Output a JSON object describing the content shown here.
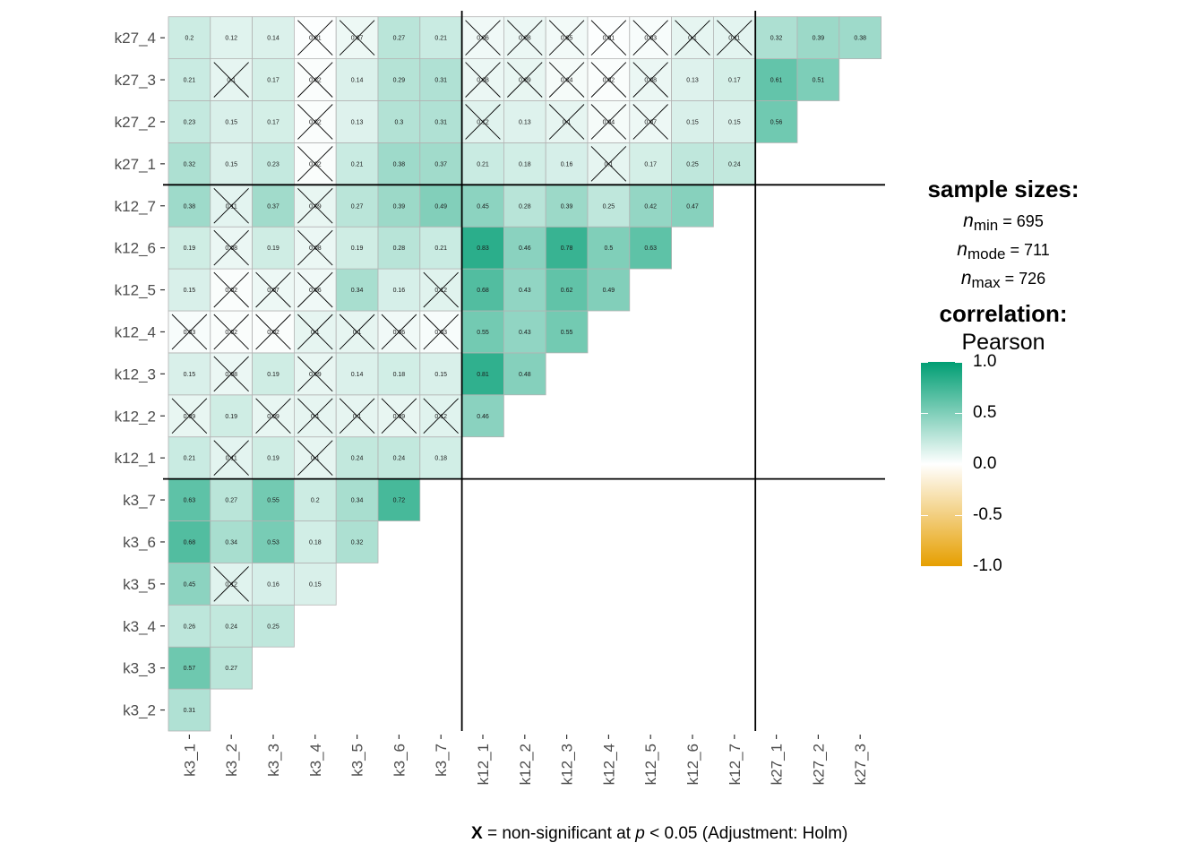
{
  "chart_data": {
    "type": "heatmap",
    "variables": [
      "k3_1",
      "k3_2",
      "k3_3",
      "k3_4",
      "k3_5",
      "k3_6",
      "k3_7",
      "k12_1",
      "k12_2",
      "k12_3",
      "k12_4",
      "k12_5",
      "k12_6",
      "k12_7",
      "k27_1",
      "k27_2",
      "k27_3",
      "k27_4"
    ],
    "cells": [
      {
        "x": "k3_1",
        "y": "k3_2",
        "value": "0.31",
        "sig": true
      },
      {
        "x": "k3_1",
        "y": "k3_3",
        "value": "0.57",
        "sig": true
      },
      {
        "x": "k3_2",
        "y": "k3_3",
        "value": "0.27",
        "sig": true
      },
      {
        "x": "k3_1",
        "y": "k3_4",
        "value": "0.26",
        "sig": true
      },
      {
        "x": "k3_2",
        "y": "k3_4",
        "value": "0.24",
        "sig": true
      },
      {
        "x": "k3_3",
        "y": "k3_4",
        "value": "0.25",
        "sig": true
      },
      {
        "x": "k3_1",
        "y": "k3_5",
        "value": "0.45",
        "sig": true
      },
      {
        "x": "k3_2",
        "y": "k3_5",
        "value": "0.12",
        "sig": false
      },
      {
        "x": "k3_3",
        "y": "k3_5",
        "value": "0.16",
        "sig": true
      },
      {
        "x": "k3_4",
        "y": "k3_5",
        "value": "0.15",
        "sig": true
      },
      {
        "x": "k3_1",
        "y": "k3_6",
        "value": "0.68",
        "sig": true
      },
      {
        "x": "k3_2",
        "y": "k3_6",
        "value": "0.34",
        "sig": true
      },
      {
        "x": "k3_3",
        "y": "k3_6",
        "value": "0.53",
        "sig": true
      },
      {
        "x": "k3_4",
        "y": "k3_6",
        "value": "0.18",
        "sig": true
      },
      {
        "x": "k3_5",
        "y": "k3_6",
        "value": "0.32",
        "sig": true
      },
      {
        "x": "k3_1",
        "y": "k3_7",
        "value": "0.63",
        "sig": true
      },
      {
        "x": "k3_2",
        "y": "k3_7",
        "value": "0.27",
        "sig": true
      },
      {
        "x": "k3_3",
        "y": "k3_7",
        "value": "0.55",
        "sig": true
      },
      {
        "x": "k3_4",
        "y": "k3_7",
        "value": "0.2",
        "sig": true
      },
      {
        "x": "k3_5",
        "y": "k3_7",
        "value": "0.34",
        "sig": true
      },
      {
        "x": "k3_6",
        "y": "k3_7",
        "value": "0.72",
        "sig": true
      },
      {
        "x": "k3_1",
        "y": "k12_1",
        "value": "0.21",
        "sig": true
      },
      {
        "x": "k3_2",
        "y": "k12_1",
        "value": "0.11",
        "sig": false
      },
      {
        "x": "k3_3",
        "y": "k12_1",
        "value": "0.19",
        "sig": true
      },
      {
        "x": "k3_4",
        "y": "k12_1",
        "value": "0.1",
        "sig": false
      },
      {
        "x": "k3_5",
        "y": "k12_1",
        "value": "0.24",
        "sig": true
      },
      {
        "x": "k3_6",
        "y": "k12_1",
        "value": "0.24",
        "sig": true
      },
      {
        "x": "k3_7",
        "y": "k12_1",
        "value": "0.18",
        "sig": true
      },
      {
        "x": "k3_1",
        "y": "k12_2",
        "value": "0.09",
        "sig": false
      },
      {
        "x": "k3_2",
        "y": "k12_2",
        "value": "0.19",
        "sig": true
      },
      {
        "x": "k3_3",
        "y": "k12_2",
        "value": "0.09",
        "sig": false
      },
      {
        "x": "k3_4",
        "y": "k12_2",
        "value": "0.1",
        "sig": false
      },
      {
        "x": "k3_5",
        "y": "k12_2",
        "value": "0.1",
        "sig": false
      },
      {
        "x": "k3_6",
        "y": "k12_2",
        "value": "0.09",
        "sig": false
      },
      {
        "x": "k3_7",
        "y": "k12_2",
        "value": "0.12",
        "sig": false
      },
      {
        "x": "k12_1",
        "y": "k12_2",
        "value": "0.46",
        "sig": true
      },
      {
        "x": "k3_1",
        "y": "k12_3",
        "value": "0.15",
        "sig": true
      },
      {
        "x": "k3_2",
        "y": "k12_3",
        "value": "0.08",
        "sig": false
      },
      {
        "x": "k3_3",
        "y": "k12_3",
        "value": "0.19",
        "sig": true
      },
      {
        "x": "k3_4",
        "y": "k12_3",
        "value": "0.09",
        "sig": false
      },
      {
        "x": "k3_5",
        "y": "k12_3",
        "value": "0.14",
        "sig": true
      },
      {
        "x": "k3_6",
        "y": "k12_3",
        "value": "0.18",
        "sig": true
      },
      {
        "x": "k3_7",
        "y": "k12_3",
        "value": "0.15",
        "sig": true
      },
      {
        "x": "k12_1",
        "y": "k12_3",
        "value": "0.81",
        "sig": true
      },
      {
        "x": "k12_2",
        "y": "k12_3",
        "value": "0.48",
        "sig": true
      },
      {
        "x": "k3_1",
        "y": "k12_4",
        "value": "0.03",
        "sig": false
      },
      {
        "x": "k3_2",
        "y": "k12_4",
        "value": "0.02",
        "sig": false
      },
      {
        "x": "k3_3",
        "y": "k12_4",
        "value": "0.02",
        "sig": false
      },
      {
        "x": "k3_4",
        "y": "k12_4",
        "value": "0.1",
        "sig": false
      },
      {
        "x": "k3_5",
        "y": "k12_4",
        "value": "0.1",
        "sig": false
      },
      {
        "x": "k3_6",
        "y": "k12_4",
        "value": "0.06",
        "sig": false
      },
      {
        "x": "k3_7",
        "y": "k12_4",
        "value": "0.03",
        "sig": false
      },
      {
        "x": "k12_1",
        "y": "k12_4",
        "value": "0.55",
        "sig": true
      },
      {
        "x": "k12_2",
        "y": "k12_4",
        "value": "0.43",
        "sig": true
      },
      {
        "x": "k12_3",
        "y": "k12_4",
        "value": "0.55",
        "sig": true
      },
      {
        "x": "k3_1",
        "y": "k12_5",
        "value": "0.15",
        "sig": true
      },
      {
        "x": "k3_2",
        "y": "k12_5",
        "value": "0.02",
        "sig": false
      },
      {
        "x": "k3_3",
        "y": "k12_5",
        "value": "0.07",
        "sig": false
      },
      {
        "x": "k3_4",
        "y": "k12_5",
        "value": "0.06",
        "sig": false
      },
      {
        "x": "k3_5",
        "y": "k12_5",
        "value": "0.34",
        "sig": true
      },
      {
        "x": "k3_6",
        "y": "k12_5",
        "value": "0.16",
        "sig": true
      },
      {
        "x": "k3_7",
        "y": "k12_5",
        "value": "0.12",
        "sig": false
      },
      {
        "x": "k12_1",
        "y": "k12_5",
        "value": "0.68",
        "sig": true
      },
      {
        "x": "k12_2",
        "y": "k12_5",
        "value": "0.43",
        "sig": true
      },
      {
        "x": "k12_3",
        "y": "k12_5",
        "value": "0.62",
        "sig": true
      },
      {
        "x": "k12_4",
        "y": "k12_5",
        "value": "0.49",
        "sig": true
      },
      {
        "x": "k3_1",
        "y": "k12_6",
        "value": "0.19",
        "sig": true
      },
      {
        "x": "k3_2",
        "y": "k12_6",
        "value": "0.08",
        "sig": false
      },
      {
        "x": "k3_3",
        "y": "k12_6",
        "value": "0.19",
        "sig": true
      },
      {
        "x": "k3_4",
        "y": "k12_6",
        "value": "0.08",
        "sig": false
      },
      {
        "x": "k3_5",
        "y": "k12_6",
        "value": "0.19",
        "sig": true
      },
      {
        "x": "k3_6",
        "y": "k12_6",
        "value": "0.28",
        "sig": true
      },
      {
        "x": "k3_7",
        "y": "k12_6",
        "value": "0.21",
        "sig": true
      },
      {
        "x": "k12_1",
        "y": "k12_6",
        "value": "0.83",
        "sig": true
      },
      {
        "x": "k12_2",
        "y": "k12_6",
        "value": "0.46",
        "sig": true
      },
      {
        "x": "k12_3",
        "y": "k12_6",
        "value": "0.78",
        "sig": true
      },
      {
        "x": "k12_4",
        "y": "k12_6",
        "value": "0.5",
        "sig": true
      },
      {
        "x": "k12_5",
        "y": "k12_6",
        "value": "0.63",
        "sig": true
      },
      {
        "x": "k3_1",
        "y": "k12_7",
        "value": "0.38",
        "sig": true
      },
      {
        "x": "k3_2",
        "y": "k12_7",
        "value": "0.11",
        "sig": false
      },
      {
        "x": "k3_3",
        "y": "k12_7",
        "value": "0.37",
        "sig": true
      },
      {
        "x": "k3_4",
        "y": "k12_7",
        "value": "0.09",
        "sig": false
      },
      {
        "x": "k3_5",
        "y": "k12_7",
        "value": "0.27",
        "sig": true
      },
      {
        "x": "k3_6",
        "y": "k12_7",
        "value": "0.39",
        "sig": true
      },
      {
        "x": "k3_7",
        "y": "k12_7",
        "value": "0.49",
        "sig": true
      },
      {
        "x": "k12_1",
        "y": "k12_7",
        "value": "0.45",
        "sig": true
      },
      {
        "x": "k12_2",
        "y": "k12_7",
        "value": "0.28",
        "sig": true
      },
      {
        "x": "k12_3",
        "y": "k12_7",
        "value": "0.39",
        "sig": true
      },
      {
        "x": "k12_4",
        "y": "k12_7",
        "value": "0.25",
        "sig": true
      },
      {
        "x": "k12_5",
        "y": "k12_7",
        "value": "0.42",
        "sig": true
      },
      {
        "x": "k12_6",
        "y": "k12_7",
        "value": "0.47",
        "sig": true
      },
      {
        "x": "k3_1",
        "y": "k27_1",
        "value": "0.32",
        "sig": true
      },
      {
        "x": "k3_2",
        "y": "k27_1",
        "value": "0.15",
        "sig": true
      },
      {
        "x": "k3_3",
        "y": "k27_1",
        "value": "0.23",
        "sig": true
      },
      {
        "x": "k3_4",
        "y": "k27_1",
        "value": "0.02",
        "sig": false
      },
      {
        "x": "k3_5",
        "y": "k27_1",
        "value": "0.21",
        "sig": true
      },
      {
        "x": "k3_6",
        "y": "k27_1",
        "value": "0.38",
        "sig": true
      },
      {
        "x": "k3_7",
        "y": "k27_1",
        "value": "0.37",
        "sig": true
      },
      {
        "x": "k12_1",
        "y": "k27_1",
        "value": "0.21",
        "sig": true
      },
      {
        "x": "k12_2",
        "y": "k27_1",
        "value": "0.18",
        "sig": true
      },
      {
        "x": "k12_3",
        "y": "k27_1",
        "value": "0.16",
        "sig": true
      },
      {
        "x": "k12_4",
        "y": "k27_1",
        "value": "0.1",
        "sig": false
      },
      {
        "x": "k12_5",
        "y": "k27_1",
        "value": "0.17",
        "sig": true
      },
      {
        "x": "k12_6",
        "y": "k27_1",
        "value": "0.25",
        "sig": true
      },
      {
        "x": "k12_7",
        "y": "k27_1",
        "value": "0.24",
        "sig": true
      },
      {
        "x": "k3_1",
        "y": "k27_2",
        "value": "0.23",
        "sig": true
      },
      {
        "x": "k3_2",
        "y": "k27_2",
        "value": "0.15",
        "sig": true
      },
      {
        "x": "k3_3",
        "y": "k27_2",
        "value": "0.17",
        "sig": true
      },
      {
        "x": "k3_4",
        "y": "k27_2",
        "value": "0.02",
        "sig": false
      },
      {
        "x": "k3_5",
        "y": "k27_2",
        "value": "0.13",
        "sig": true
      },
      {
        "x": "k3_6",
        "y": "k27_2",
        "value": "0.3",
        "sig": true
      },
      {
        "x": "k3_7",
        "y": "k27_2",
        "value": "0.31",
        "sig": true
      },
      {
        "x": "k12_1",
        "y": "k27_2",
        "value": "0.12",
        "sig": false
      },
      {
        "x": "k12_2",
        "y": "k27_2",
        "value": "0.13",
        "sig": true
      },
      {
        "x": "k12_3",
        "y": "k27_2",
        "value": "0.1",
        "sig": false
      },
      {
        "x": "k12_4",
        "y": "k27_2",
        "value": "0.04",
        "sig": false
      },
      {
        "x": "k12_5",
        "y": "k27_2",
        "value": "0.07",
        "sig": false
      },
      {
        "x": "k12_6",
        "y": "k27_2",
        "value": "0.15",
        "sig": true
      },
      {
        "x": "k12_7",
        "y": "k27_2",
        "value": "0.15",
        "sig": true
      },
      {
        "x": "k27_1",
        "y": "k27_2",
        "value": "0.56",
        "sig": true
      },
      {
        "x": "k3_1",
        "y": "k27_3",
        "value": "0.21",
        "sig": true
      },
      {
        "x": "k3_2",
        "y": "k27_3",
        "value": "0.1",
        "sig": false
      },
      {
        "x": "k3_3",
        "y": "k27_3",
        "value": "0.17",
        "sig": true
      },
      {
        "x": "k3_4",
        "y": "k27_3",
        "value": "0.02",
        "sig": false
      },
      {
        "x": "k3_5",
        "y": "k27_3",
        "value": "0.14",
        "sig": true
      },
      {
        "x": "k3_6",
        "y": "k27_3",
        "value": "0.29",
        "sig": true
      },
      {
        "x": "k3_7",
        "y": "k27_3",
        "value": "0.31",
        "sig": true
      },
      {
        "x": "k12_1",
        "y": "k27_3",
        "value": "0.08",
        "sig": false
      },
      {
        "x": "k12_2",
        "y": "k27_3",
        "value": "0.09",
        "sig": false
      },
      {
        "x": "k12_3",
        "y": "k27_3",
        "value": "0.04",
        "sig": false
      },
      {
        "x": "k12_4",
        "y": "k27_3",
        "value": "0.02",
        "sig": false
      },
      {
        "x": "k12_5",
        "y": "k27_3",
        "value": "0.08",
        "sig": false
      },
      {
        "x": "k12_6",
        "y": "k27_3",
        "value": "0.13",
        "sig": true
      },
      {
        "x": "k12_7",
        "y": "k27_3",
        "value": "0.17",
        "sig": true
      },
      {
        "x": "k27_1",
        "y": "k27_3",
        "value": "0.61",
        "sig": true
      },
      {
        "x": "k27_2",
        "y": "k27_3",
        "value": "0.51",
        "sig": true
      },
      {
        "x": "k3_1",
        "y": "k27_4",
        "value": "0.2",
        "sig": true
      },
      {
        "x": "k3_2",
        "y": "k27_4",
        "value": "0.12",
        "sig": true
      },
      {
        "x": "k3_3",
        "y": "k27_4",
        "value": "0.14",
        "sig": true
      },
      {
        "x": "k3_4",
        "y": "k27_4",
        "value": "0.01",
        "sig": false
      },
      {
        "x": "k3_5",
        "y": "k27_4",
        "value": "0.07",
        "sig": false
      },
      {
        "x": "k3_6",
        "y": "k27_4",
        "value": "0.27",
        "sig": true
      },
      {
        "x": "k3_7",
        "y": "k27_4",
        "value": "0.21",
        "sig": true
      },
      {
        "x": "k12_1",
        "y": "k27_4",
        "value": "0.06",
        "sig": false
      },
      {
        "x": "k12_2",
        "y": "k27_4",
        "value": "0.08",
        "sig": false
      },
      {
        "x": "k12_3",
        "y": "k27_4",
        "value": "0.05",
        "sig": false
      },
      {
        "x": "k12_4",
        "y": "k27_4",
        "value": "0.01",
        "sig": false
      },
      {
        "x": "k12_5",
        "y": "k27_4",
        "value": "0.03",
        "sig": false
      },
      {
        "x": "k12_6",
        "y": "k27_4",
        "value": "0.1",
        "sig": false
      },
      {
        "x": "k12_7",
        "y": "k27_4",
        "value": "0.11",
        "sig": false
      },
      {
        "x": "k27_1",
        "y": "k27_4",
        "value": "0.32",
        "sig": true
      },
      {
        "x": "k27_2",
        "y": "k27_4",
        "value": "0.39",
        "sig": true
      },
      {
        "x": "k27_3",
        "y": "k27_4",
        "value": "0.38",
        "sig": true
      }
    ],
    "color_scale": {
      "low": "#E69F00",
      "mid": "#FFFFFF",
      "high": "#009E73",
      "limits": [
        -1,
        1
      ]
    },
    "legend_ticks": [
      "1.0",
      "0.5",
      "0.0",
      "-0.5",
      "-1.0"
    ],
    "group_separators_after": [
      "k3_7",
      "k12_7"
    ]
  },
  "legend": {
    "sample_sizes_title": "sample sizes:",
    "n_symbol": "n",
    "n_min_sub": "min",
    "n_min_value": "= 695",
    "n_mode_sub": "mode",
    "n_mode_value": "= 711",
    "n_max_sub": "max",
    "n_max_value": "= 726",
    "correlation_title": "correlation:",
    "correlation_method": "Pearson"
  },
  "caption": {
    "mark": "X",
    "text1": " = non-significant at ",
    "p": "p",
    "text2": " < 0.05 (Adjustment: Holm)"
  }
}
